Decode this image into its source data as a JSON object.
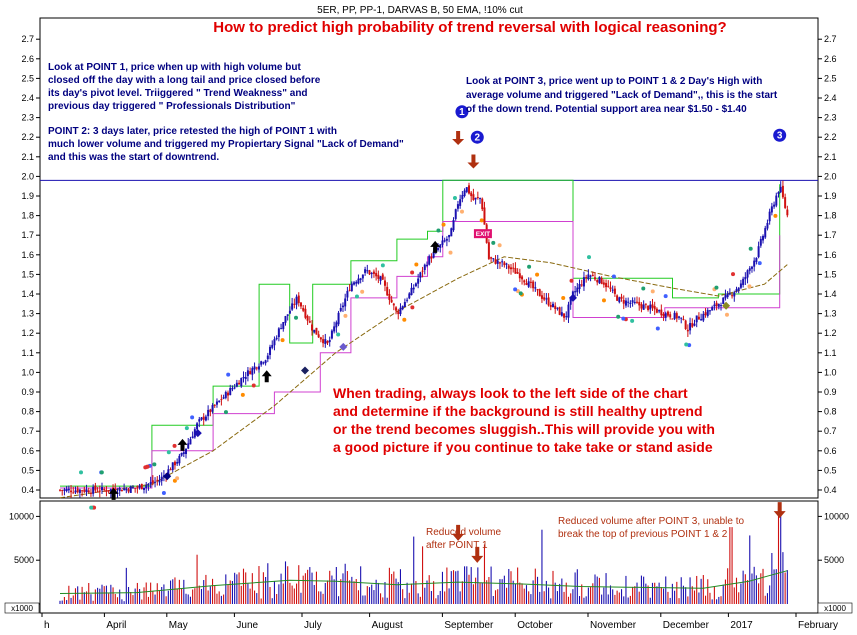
{
  "header": "5ER, PP, PP-1, DARVAS B, 50 EMA, !10% cut",
  "chart_data": {
    "type": "candlestick",
    "title": "How to predict high probability of trend reversal with logical reasoning?",
    "indicators": [
      "PP",
      "PP-1",
      "DARVAS B",
      "50 EMA",
      "!10% cut"
    ],
    "price_axis": {
      "min": 0.35,
      "max": 2.8,
      "ticks": [
        0.4,
        0.5,
        0.6,
        0.7,
        0.8,
        0.9,
        1.0,
        1.1,
        1.2,
        1.3,
        1.4,
        1.5,
        1.6,
        1.7,
        1.8,
        1.9,
        2.0,
        2.1,
        2.2,
        2.3,
        2.4,
        2.5,
        2.6,
        2.7
      ],
      "tick_labels": [
        "0.4",
        "0.5",
        "0.6",
        "0.7",
        "0.8",
        "0.9",
        "1.0",
        "1.1",
        "1.2",
        "1.3",
        "1.4",
        "1.5",
        "1.6",
        "1.7",
        "1.8",
        "1.9",
        "2.0",
        "2.1",
        "2.2",
        "2.3",
        "2.4",
        "2.5",
        "2.6",
        "2.7"
      ]
    },
    "volume_axis": {
      "min": 0,
      "max": 12500,
      "ticks": [
        0,
        5000,
        10000
      ],
      "tick_labels": [
        "",
        "5000",
        "10000"
      ],
      "unit_label": "x1000"
    },
    "time_axis": {
      "labels": [
        "h",
        "April",
        "May",
        "June",
        "July",
        "August",
        "September",
        "October",
        "November",
        "December",
        "2017",
        "February"
      ]
    },
    "resistance_line": 1.98,
    "close_series": [
      {
        "t": 0,
        "v": 0.4
      },
      {
        "t": 6,
        "v": 0.4
      },
      {
        "t": 10,
        "v": 0.41
      },
      {
        "t": 13,
        "v": 0.45
      },
      {
        "t": 16,
        "v": 0.58
      },
      {
        "t": 18,
        "v": 0.74
      },
      {
        "t": 21,
        "v": 0.86
      },
      {
        "t": 24,
        "v": 0.98
      },
      {
        "t": 27,
        "v": 1.08
      },
      {
        "t": 29,
        "v": 1.25
      },
      {
        "t": 31,
        "v": 1.38
      },
      {
        "t": 33,
        "v": 1.22
      },
      {
        "t": 35,
        "v": 1.14
      },
      {
        "t": 36,
        "v": 1.25
      },
      {
        "t": 38,
        "v": 1.45
      },
      {
        "t": 40,
        "v": 1.52
      },
      {
        "t": 42,
        "v": 1.47
      },
      {
        "t": 44,
        "v": 1.3
      },
      {
        "t": 46,
        "v": 1.42
      },
      {
        "t": 48,
        "v": 1.57
      },
      {
        "t": 50,
        "v": 1.66
      },
      {
        "t": 51,
        "v": 1.7
      },
      {
        "t": 52,
        "v": 1.87
      },
      {
        "t": 53,
        "v": 1.95
      },
      {
        "t": 54,
        "v": 1.88
      },
      {
        "t": 55,
        "v": 1.89
      },
      {
        "t": 56,
        "v": 1.58
      },
      {
        "t": 58,
        "v": 1.55
      },
      {
        "t": 60,
        "v": 1.5
      },
      {
        "t": 62,
        "v": 1.42
      },
      {
        "t": 64,
        "v": 1.35
      },
      {
        "t": 66,
        "v": 1.28
      },
      {
        "t": 67,
        "v": 1.4
      },
      {
        "t": 69,
        "v": 1.5
      },
      {
        "t": 71,
        "v": 1.46
      },
      {
        "t": 73,
        "v": 1.37
      },
      {
        "t": 75,
        "v": 1.35
      },
      {
        "t": 77,
        "v": 1.33
      },
      {
        "t": 79,
        "v": 1.3
      },
      {
        "t": 81,
        "v": 1.28
      },
      {
        "t": 82,
        "v": 1.22
      },
      {
        "t": 83,
        "v": 1.27
      },
      {
        "t": 85,
        "v": 1.32
      },
      {
        "t": 87,
        "v": 1.38
      },
      {
        "t": 89,
        "v": 1.45
      },
      {
        "t": 91,
        "v": 1.6
      },
      {
        "t": 92,
        "v": 1.72
      },
      {
        "t": 93,
        "v": 1.84
      },
      {
        "t": 94,
        "v": 1.95
      },
      {
        "t": 95,
        "v": 1.8
      }
    ],
    "ema50_series": [
      {
        "t": 0,
        "v": 0.36
      },
      {
        "t": 12,
        "v": 0.43
      },
      {
        "t": 20,
        "v": 0.6
      },
      {
        "t": 28,
        "v": 0.83
      },
      {
        "t": 36,
        "v": 1.1
      },
      {
        "t": 44,
        "v": 1.31
      },
      {
        "t": 52,
        "v": 1.48
      },
      {
        "t": 58,
        "v": 1.59
      },
      {
        "t": 64,
        "v": 1.56
      },
      {
        "t": 72,
        "v": 1.49
      },
      {
        "t": 80,
        "v": 1.43
      },
      {
        "t": 86,
        "v": 1.39
      },
      {
        "t": 92,
        "v": 1.45
      },
      {
        "t": 95,
        "v": 1.55
      }
    ],
    "pp_steps": [
      {
        "t": 0,
        "v": 0.42
      },
      {
        "t": 12,
        "v": 0.42
      },
      {
        "t": 12,
        "v": 0.73
      },
      {
        "t": 20,
        "v": 0.73
      },
      {
        "t": 20,
        "v": 0.93
      },
      {
        "t": 26,
        "v": 0.93
      },
      {
        "t": 26,
        "v": 1.45
      },
      {
        "t": 30,
        "v": 1.45
      },
      {
        "t": 30,
        "v": 1.15
      },
      {
        "t": 33,
        "v": 1.15
      },
      {
        "t": 33,
        "v": 1.45
      },
      {
        "t": 38,
        "v": 1.45
      },
      {
        "t": 38,
        "v": 1.57
      },
      {
        "t": 44,
        "v": 1.57
      },
      {
        "t": 44,
        "v": 1.68
      },
      {
        "t": 48,
        "v": 1.68
      },
      {
        "t": 48,
        "v": 1.72
      },
      {
        "t": 50,
        "v": 1.72
      },
      {
        "t": 50,
        "v": 1.98
      },
      {
        "t": 67,
        "v": 1.98
      },
      {
        "t": 67,
        "v": 1.48
      },
      {
        "t": 80,
        "v": 1.48
      },
      {
        "t": 80,
        "v": 1.38
      },
      {
        "t": 86,
        "v": 1.38
      },
      {
        "t": 86,
        "v": 1.4
      },
      {
        "t": 94,
        "v": 1.4
      },
      {
        "t": 94,
        "v": 1.96
      }
    ],
    "pp1_steps": [
      {
        "t": 0,
        "v": 0.41
      },
      {
        "t": 12,
        "v": 0.41
      },
      {
        "t": 12,
        "v": 0.6
      },
      {
        "t": 20,
        "v": 0.6
      },
      {
        "t": 20,
        "v": 0.79
      },
      {
        "t": 28,
        "v": 0.79
      },
      {
        "t": 28,
        "v": 0.9
      },
      {
        "t": 34,
        "v": 0.9
      },
      {
        "t": 34,
        "v": 1.1
      },
      {
        "t": 38,
        "v": 1.1
      },
      {
        "t": 38,
        "v": 1.38
      },
      {
        "t": 44,
        "v": 1.38
      },
      {
        "t": 44,
        "v": 1.49
      },
      {
        "t": 48,
        "v": 1.49
      },
      {
        "t": 48,
        "v": 1.59
      },
      {
        "t": 50,
        "v": 1.59
      },
      {
        "t": 50,
        "v": 1.77
      },
      {
        "t": 67,
        "v": 1.77
      },
      {
        "t": 67,
        "v": 1.28
      },
      {
        "t": 79,
        "v": 1.28
      },
      {
        "t": 79,
        "v": 1.33
      },
      {
        "t": 94,
        "v": 1.33
      },
      {
        "t": 94,
        "v": 1.7
      }
    ],
    "volume_ma": [
      {
        "t": 0,
        "v": 1200
      },
      {
        "t": 10,
        "v": 1300
      },
      {
        "t": 20,
        "v": 2100
      },
      {
        "t": 30,
        "v": 2700
      },
      {
        "t": 36,
        "v": 2600
      },
      {
        "t": 44,
        "v": 2200
      },
      {
        "t": 52,
        "v": 2500
      },
      {
        "t": 60,
        "v": 2300
      },
      {
        "t": 68,
        "v": 2000
      },
      {
        "t": 76,
        "v": 1900
      },
      {
        "t": 84,
        "v": 1800
      },
      {
        "t": 90,
        "v": 2600
      },
      {
        "t": 95,
        "v": 3800
      }
    ],
    "volume_spikes": [
      {
        "t": 52,
        "v": 3800
      },
      {
        "t": 53,
        "v": 4300
      },
      {
        "t": 55,
        "v": 2400
      },
      {
        "t": 94,
        "v": 11000
      }
    ],
    "points": [
      {
        "label": "1",
        "t": 52.5
      },
      {
        "label": "2",
        "t": 54.5
      },
      {
        "label": "3",
        "t": 94
      }
    ],
    "markers": {
      "exit_label": "EXIT"
    },
    "annotations": {
      "point1_lines": [
        "Look at POINT 1, price when up with high volume but",
        "closed off the day with a long tail and price closed before",
        "its day's pivot level. Triiggered \" Trend Weakness\" and",
        "previous day triggered \" Professionals Distribution\""
      ],
      "point2_lines": [
        "POINT 2: 3 days later, price retested the high of POINT 1 with",
        "much lower volume and triggered my Propiertary Signal \"Lack of Demand\"",
        "and this was the start of downtrend."
      ],
      "point3_lines": [
        "Look at POINT 3, price went up to POINT 1 & 2 Day's High with",
        "average volume and triggered \"Lack of Demand\",, this is the start",
        "of the down trend. Potential support area near $1.50 - $1.40"
      ],
      "trading_lines": [
        "When trading, always look to the left side of the chart",
        "and determine if the background is still healthy uptrend",
        "or the trend becomes sluggish..This will provide you with",
        "a good picture if you continue to take take or stand aside"
      ],
      "volume_note_1": [
        "Reduced volume",
        "after POINT 1"
      ],
      "volume_note_3": [
        "Reduced volume after POINT 3, unable to",
        "break the top of previous POINT 1 & 2"
      ]
    },
    "colors": {
      "up_candle": "#1a10b0",
      "down_candle": "#d01010",
      "pp": "#22cc22",
      "pp1": "#d040d0",
      "ema": "#8a6a10",
      "resistance": "#1a10b0",
      "title": "#e00000",
      "annotation": "#000080",
      "arrow_brown": "#b03010",
      "point_badge": "#1a1ad0",
      "exit": "#e01070"
    }
  }
}
